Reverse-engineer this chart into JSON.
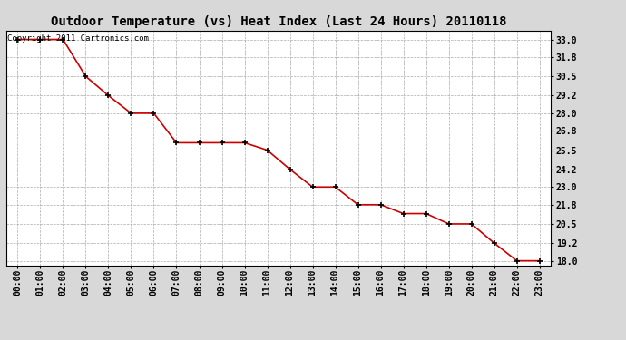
{
  "title": "Outdoor Temperature (vs) Heat Index (Last 24 Hours) 20110118",
  "copyright_text": "Copyright 2011 Cartronics.com",
  "x_labels": [
    "00:00",
    "01:00",
    "02:00",
    "03:00",
    "04:00",
    "05:00",
    "06:00",
    "07:00",
    "08:00",
    "09:00",
    "10:00",
    "11:00",
    "12:00",
    "13:00",
    "14:00",
    "15:00",
    "16:00",
    "17:00",
    "18:00",
    "19:00",
    "20:00",
    "21:00",
    "22:00",
    "23:00"
  ],
  "y_values": [
    33.0,
    33.0,
    33.0,
    30.5,
    29.2,
    28.0,
    28.0,
    26.0,
    26.0,
    26.0,
    26.0,
    25.5,
    24.2,
    23.0,
    23.0,
    21.8,
    21.8,
    21.2,
    21.2,
    20.5,
    20.5,
    19.2,
    18.0,
    18.0
  ],
  "y_ticks": [
    18.0,
    19.2,
    20.5,
    21.8,
    23.0,
    24.2,
    25.5,
    26.8,
    28.0,
    29.2,
    30.5,
    31.8,
    33.0
  ],
  "y_min": 17.7,
  "y_max": 33.6,
  "line_color": "#cc0000",
  "marker_edge_color": "#000000",
  "bg_color": "#d8d8d8",
  "plot_bg_color": "#ffffff",
  "grid_color": "#aaaaaa",
  "title_fontsize": 10,
  "tick_fontsize": 7,
  "copyright_fontsize": 6.5
}
